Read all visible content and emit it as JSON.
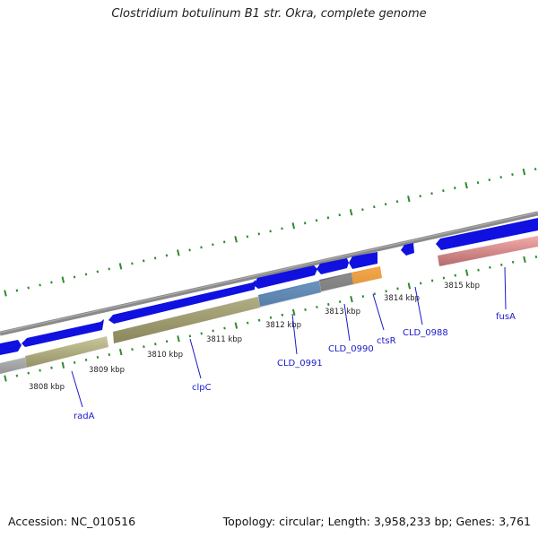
{
  "title": "Clostridium botulinum B1 str. Okra, complete genome",
  "footer": {
    "accession": "Accession: NC_010516",
    "summary": "Topology: circular; Length: 3,958,233 bp; Genes: 3,761"
  },
  "tick_labels": [
    "3808 kbp",
    "3809 kbp",
    "3810 kbp",
    "3811 kbp",
    "3812 kbp",
    "3813 kbp",
    "3814 kbp",
    "3815 kbp"
  ],
  "gene_labels": [
    "radA",
    "clpC",
    "CLD_0991",
    "CLD_0990",
    "ctsR",
    "CLD_0988",
    "fusA"
  ],
  "colors": {
    "cds": "#1010e0",
    "radA_clpC": "#b8b47c",
    "CLD_0991": "#4a80b8",
    "CLD_0990": "#6e6e6e",
    "ctsR": "#f08a10",
    "fusA": "#ee8e8e",
    "leftmost": "#c8c8c8",
    "backbone": "#8a8a8a",
    "ticks": "#2e8b2e"
  }
}
